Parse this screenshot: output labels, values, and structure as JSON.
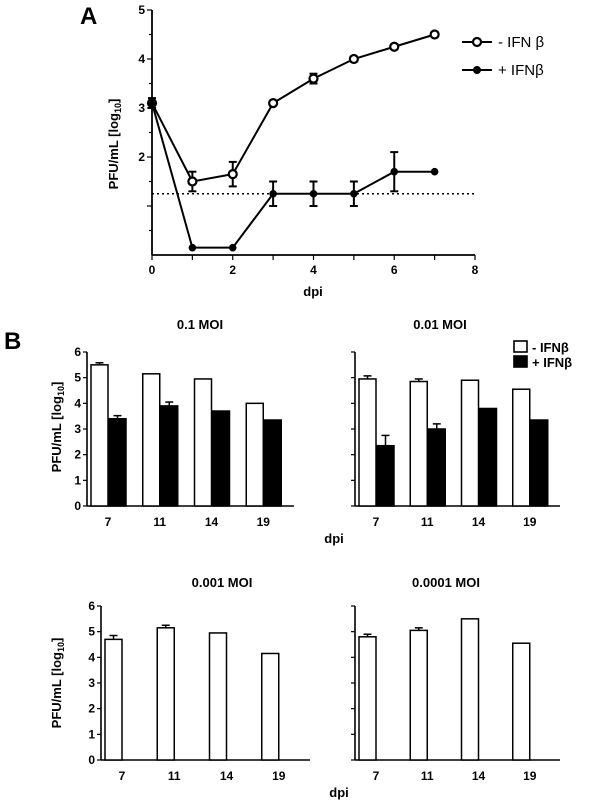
{
  "panels": {
    "a": {
      "letter": "A"
    },
    "b": {
      "letter": "B"
    }
  },
  "chart_data": [
    {
      "type": "line",
      "panel": "A",
      "xlabel": "dpi",
      "ylabel": "PFU/mL [log10]",
      "xlim": [
        0,
        8
      ],
      "ylim": [
        0,
        5
      ],
      "x_ticks": [
        "0",
        "2",
        "4",
        "6",
        "8"
      ],
      "y_ticks": [
        "2",
        "3",
        "4",
        "5"
      ],
      "detection_limit": 1.25,
      "legend_position": "top-right",
      "series": [
        {
          "name": "- IFN β",
          "marker": "open-circle",
          "x": [
            0,
            1,
            2,
            3,
            4,
            5,
            6,
            7
          ],
          "y": [
            3.1,
            1.5,
            1.65,
            3.1,
            3.6,
            4.0,
            4.25,
            4.5
          ],
          "err": [
            0.1,
            0.2,
            0.25,
            0.05,
            0.1,
            0.05,
            0.05,
            0.05
          ]
        },
        {
          "name": "+ IFNβ",
          "marker": "filled-circle",
          "x": [
            0,
            1,
            2,
            3,
            4,
            5,
            6,
            7
          ],
          "y": [
            3.1,
            0.15,
            0.15,
            1.25,
            1.25,
            1.25,
            1.7,
            1.7
          ],
          "err": [
            0.1,
            0.0,
            0.0,
            0.25,
            0.25,
            0.25,
            0.4,
            0.0
          ]
        }
      ]
    },
    {
      "type": "bar",
      "panel": "B",
      "title": "0.1 MOI",
      "ylabel": "PFU/mL [log10]",
      "ylim": [
        0,
        6
      ],
      "y_ticks": [
        "0",
        "1",
        "2",
        "3",
        "4",
        "5",
        "6"
      ],
      "categories": [
        "7",
        "11",
        "14",
        "19"
      ],
      "series": [
        {
          "name": "- IFNβ",
          "fill": "white",
          "values": [
            5.5,
            5.15,
            4.95,
            4.0
          ],
          "err": [
            0.08,
            0.0,
            0.0,
            0.0
          ]
        },
        {
          "name": "+ IFNβ",
          "fill": "black",
          "values": [
            3.4,
            3.9,
            3.7,
            3.35
          ],
          "err": [
            0.12,
            0.15,
            0.0,
            0.0
          ]
        }
      ]
    },
    {
      "type": "bar",
      "panel": "B",
      "title": "0.01 MOI",
      "ylim": [
        0,
        6
      ],
      "categories": [
        "7",
        "11",
        "14",
        "19"
      ],
      "xlabel": "dpi",
      "legend_position": "top-right",
      "series": [
        {
          "name": "- IFNβ",
          "fill": "white",
          "values": [
            4.95,
            4.85,
            4.9,
            4.55
          ],
          "err": [
            0.12,
            0.1,
            0.0,
            0.0
          ]
        },
        {
          "name": "+ IFNβ",
          "fill": "black",
          "values": [
            2.35,
            3.0,
            3.8,
            3.35
          ],
          "err": [
            0.4,
            0.2,
            0.0,
            0.0
          ]
        }
      ]
    },
    {
      "type": "bar",
      "panel": "B",
      "title": "0.001 MOI",
      "ylabel": "PFU/mL [log10]",
      "ylim": [
        0,
        6
      ],
      "y_ticks": [
        "0",
        "1",
        "2",
        "3",
        "4",
        "5",
        "6"
      ],
      "categories": [
        "7",
        "11",
        "14",
        "19"
      ],
      "series": [
        {
          "name": "- IFNβ",
          "fill": "white",
          "values": [
            4.7,
            5.15,
            4.95,
            4.15
          ],
          "err": [
            0.15,
            0.1,
            0.0,
            0.0
          ]
        }
      ]
    },
    {
      "type": "bar",
      "panel": "B",
      "title": "0.0001 MOI",
      "ylim": [
        0,
        6
      ],
      "categories": [
        "7",
        "11",
        "14",
        "19"
      ],
      "xlabel": "dpi",
      "series": [
        {
          "name": "- IFNβ",
          "fill": "white",
          "values": [
            4.8,
            5.05,
            5.5,
            4.55
          ],
          "err": [
            0.1,
            0.1,
            0.0,
            0.0
          ]
        }
      ]
    }
  ]
}
